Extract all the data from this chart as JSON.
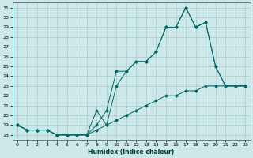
{
  "xlabel": "Humidex (Indice chaleur)",
  "bg_color": "#cde8e8",
  "grid_color": "#aacccc",
  "line_color": "#006666",
  "xlim": [
    -0.5,
    23.5
  ],
  "ylim": [
    17.5,
    31.5
  ],
  "yticks": [
    18,
    19,
    20,
    21,
    22,
    23,
    24,
    25,
    26,
    27,
    28,
    29,
    30,
    31
  ],
  "xticks": [
    0,
    1,
    2,
    3,
    4,
    5,
    6,
    7,
    8,
    9,
    10,
    11,
    12,
    13,
    14,
    15,
    16,
    17,
    18,
    19,
    20,
    21,
    22,
    23
  ],
  "line1_x": [
    0,
    1,
    2,
    3,
    4,
    5,
    6,
    7,
    8,
    9,
    10,
    11,
    12,
    13,
    14,
    15,
    16,
    17,
    18,
    19,
    20,
    21,
    22,
    23
  ],
  "line1_y": [
    19.0,
    18.5,
    18.5,
    18.5,
    18.0,
    18.0,
    18.0,
    18.0,
    18.5,
    19.0,
    19.5,
    20.0,
    20.5,
    21.0,
    21.5,
    22.0,
    22.0,
    22.5,
    22.5,
    23.0,
    23.0,
    23.0,
    23.0,
    23.0
  ],
  "line2_x": [
    0,
    1,
    2,
    3,
    4,
    5,
    6,
    7,
    8,
    9,
    10,
    11,
    12,
    13,
    14,
    15,
    16,
    17,
    18,
    19,
    20,
    21,
    22,
    23
  ],
  "line2_y": [
    19.0,
    18.5,
    18.5,
    18.5,
    18.0,
    18.0,
    18.0,
    18.0,
    19.0,
    20.5,
    24.5,
    24.5,
    25.5,
    25.5,
    26.5,
    29.0,
    29.0,
    31.0,
    29.0,
    29.5,
    25.0,
    23.0,
    23.0,
    23.0
  ],
  "line3_x": [
    0,
    1,
    2,
    3,
    4,
    5,
    6,
    7,
    8,
    9,
    10,
    11,
    12,
    13,
    14,
    15,
    16,
    17,
    18,
    19,
    20,
    21,
    22,
    23
  ],
  "line3_y": [
    19.0,
    18.5,
    18.5,
    18.5,
    18.0,
    18.0,
    18.0,
    18.0,
    20.5,
    19.0,
    23.0,
    24.5,
    25.5,
    25.5,
    26.5,
    29.0,
    29.0,
    31.0,
    29.0,
    29.5,
    25.0,
    23.0,
    23.0,
    23.0
  ]
}
